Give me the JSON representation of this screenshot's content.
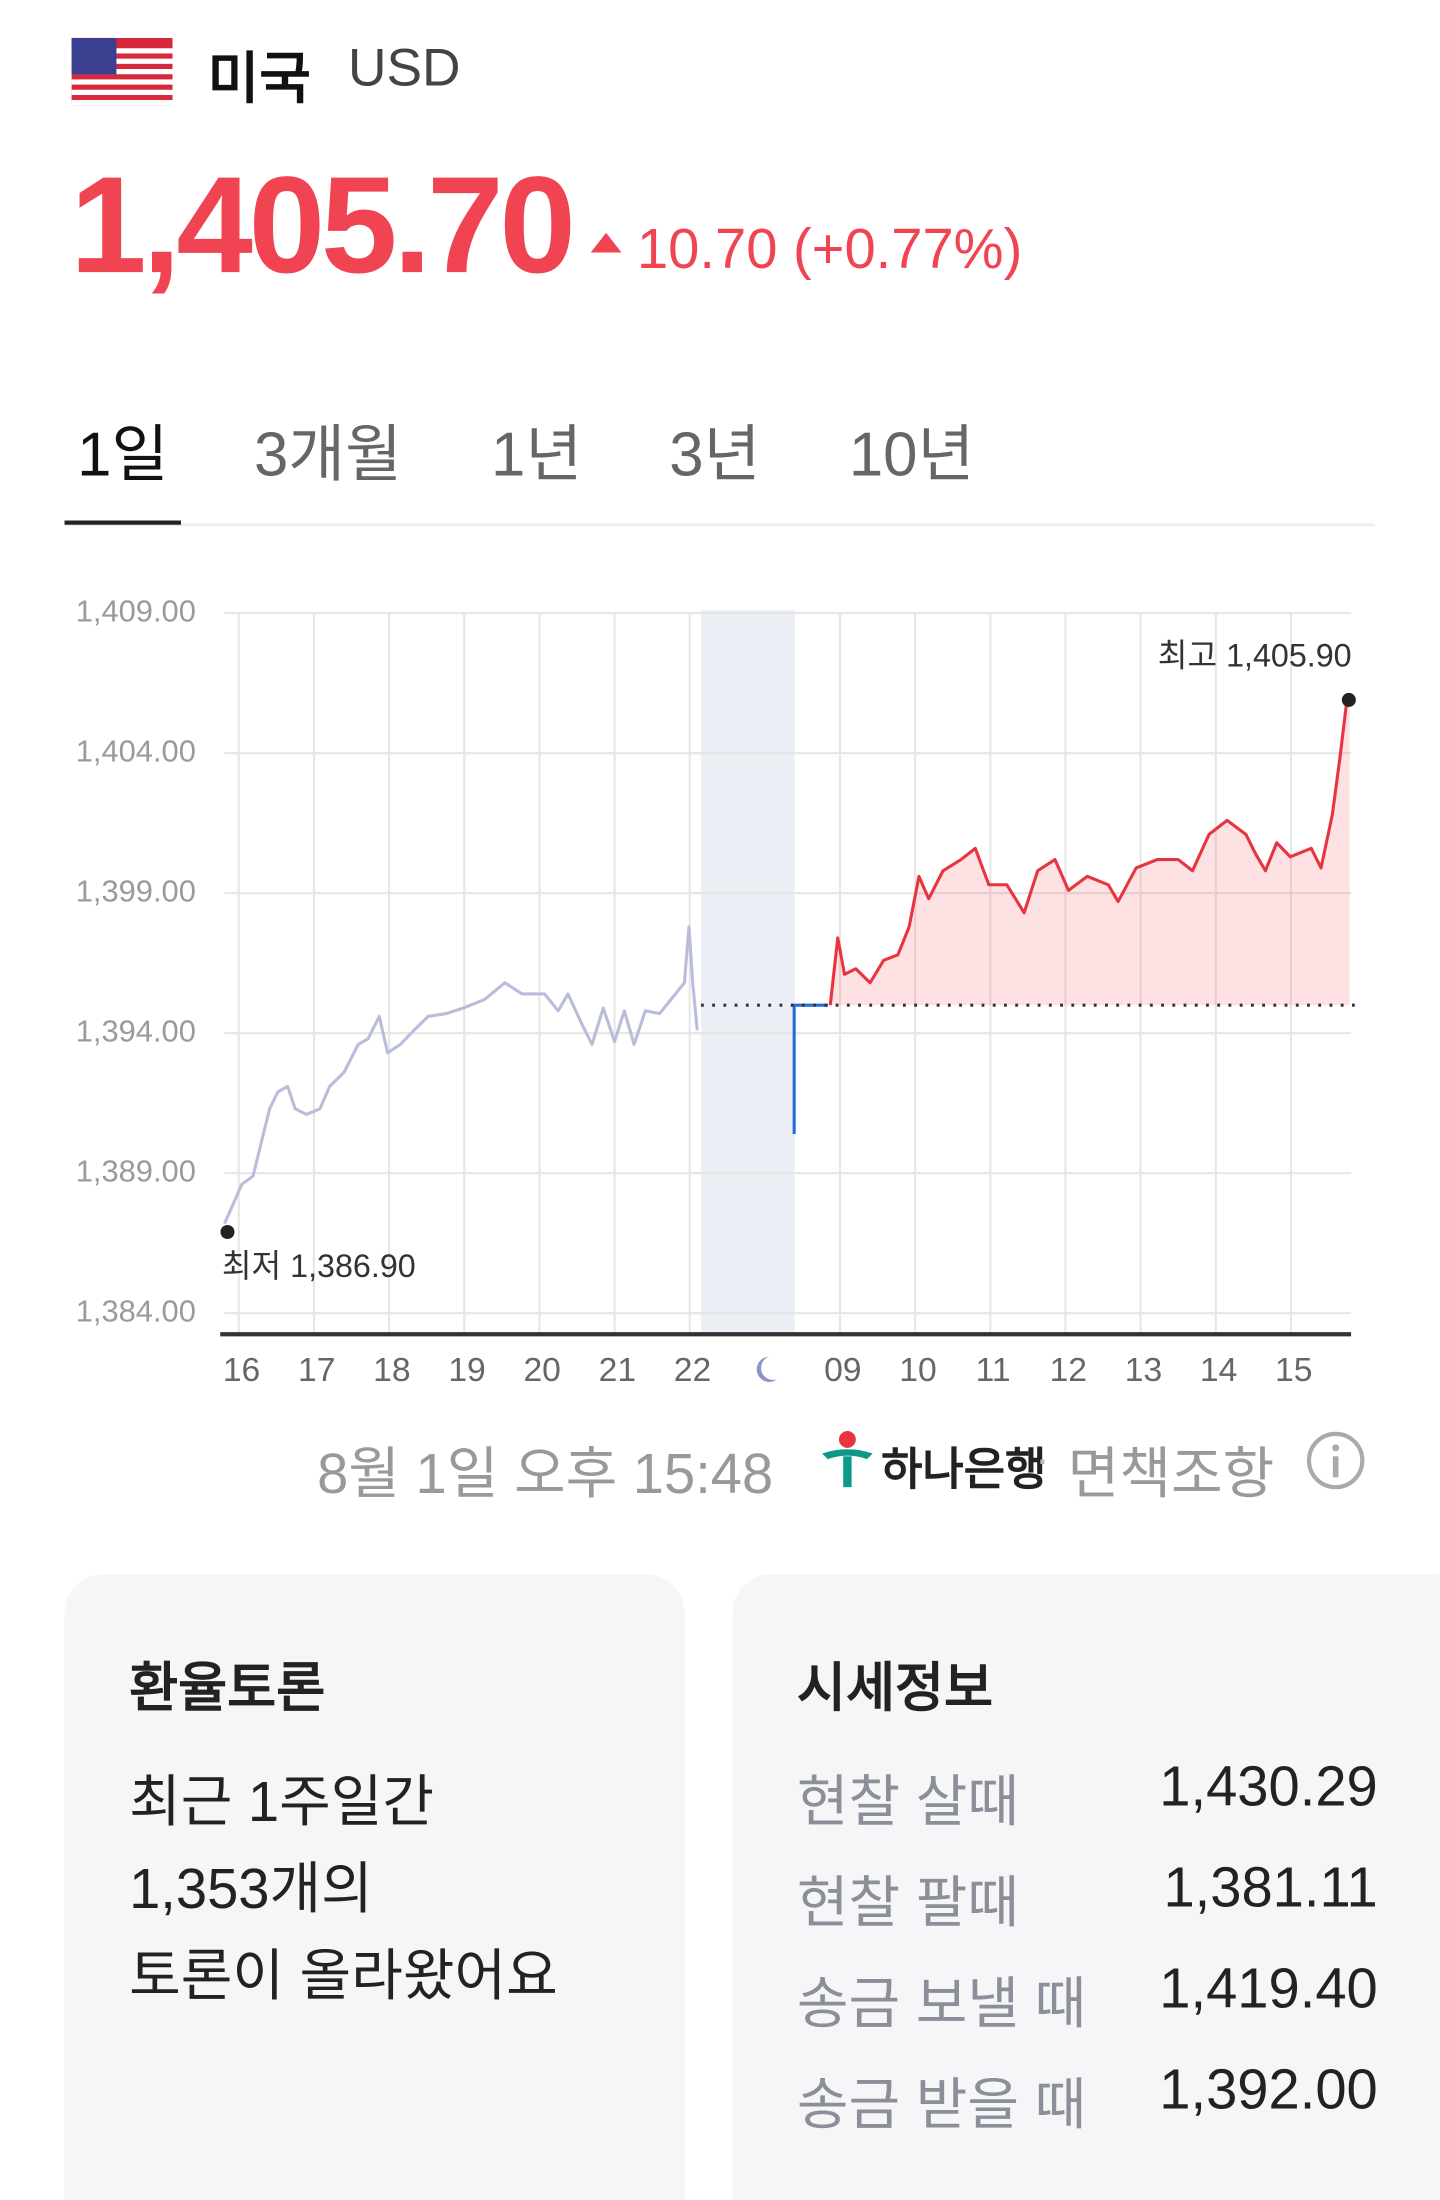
{
  "header": {
    "country": "미국",
    "currency": "USD",
    "price": "1,405.70",
    "change": "10.70 (+0.77%)"
  },
  "tabs": {
    "items": [
      "1일",
      "3개월",
      "1년",
      "3년",
      "10년"
    ],
    "active": 0
  },
  "chart_data": {
    "type": "line",
    "ylim": [
      1383.5,
      1409
    ],
    "yticks": [
      {
        "value": 1409,
        "label": "1,409.00"
      },
      {
        "value": 1404,
        "label": "1,404.00"
      },
      {
        "value": 1399,
        "label": "1,399.00"
      },
      {
        "value": 1394,
        "label": "1,394.00"
      },
      {
        "value": 1389,
        "label": "1,389.00"
      },
      {
        "value": 1384,
        "label": "1,384.00"
      }
    ],
    "xlim": [
      -0.19,
      14.8
    ],
    "xticks": [
      {
        "value": 0,
        "label": "16"
      },
      {
        "value": 1,
        "label": "17"
      },
      {
        "value": 2,
        "label": "18"
      },
      {
        "value": 3,
        "label": "19"
      },
      {
        "value": 4,
        "label": "20"
      },
      {
        "value": 5,
        "label": "21"
      },
      {
        "value": 6,
        "label": "22"
      },
      {
        "value": 8,
        "label": "09"
      },
      {
        "value": 9,
        "label": "10"
      },
      {
        "value": 10,
        "label": "11"
      },
      {
        "value": 11,
        "label": "12"
      },
      {
        "value": 12,
        "label": "13"
      },
      {
        "value": 13,
        "label": "14"
      },
      {
        "value": 14,
        "label": "15"
      }
    ],
    "grid": true,
    "shaded_range": [
      6.15,
      7.4
    ],
    "reference_line": 1395,
    "series": [
      {
        "color": "#b9bdda",
        "x": [
          -0.19,
          -0.09,
          0.04,
          0.19,
          0.3,
          0.41,
          0.52,
          0.65,
          0.75,
          0.9,
          1.08,
          1.21,
          1.4,
          1.59,
          1.72,
          1.87,
          1.98,
          2.15,
          2.33,
          2.52,
          2.76,
          2.99,
          3.27,
          3.54,
          3.77,
          4.07,
          4.25,
          4.38,
          4.57,
          4.7,
          4.85,
          5,
          5.13,
          5.26,
          5.41,
          5.6,
          5.78,
          5.93,
          5.99,
          6.04,
          6.1
        ],
        "values": [
          1387.2,
          1387.8,
          1388.6,
          1388.9,
          1390.1,
          1391.3,
          1391.9,
          1392.1,
          1391.3,
          1391.1,
          1391.3,
          1392.1,
          1392.6,
          1393.6,
          1393.8,
          1394.6,
          1393.3,
          1393.6,
          1394.1,
          1394.6,
          1394.7,
          1394.9,
          1395.2,
          1395.8,
          1395.4,
          1395.4,
          1394.8,
          1395.4,
          1394.3,
          1393.6,
          1394.9,
          1393.7,
          1394.8,
          1393.6,
          1394.8,
          1394.7,
          1395.3,
          1395.8,
          1397.8,
          1395.8,
          1394.1
        ]
      },
      {
        "color": "#1e6fd9",
        "x": [
          7.39,
          7.39,
          7.84
        ],
        "values": [
          1390.4,
          1395,
          1395
        ]
      },
      {
        "color": "#e8343f",
        "fill": true,
        "x": [
          7.87,
          7.97,
          8.06,
          8.21,
          8.4,
          8.58,
          8.77,
          8.92,
          9.05,
          9.18,
          9.37,
          9.61,
          9.8,
          9.98,
          10.22,
          10.45,
          10.63,
          10.86,
          11.04,
          11.29,
          11.57,
          11.7,
          11.94,
          12.22,
          12.5,
          12.69,
          12.91,
          13.15,
          13.4,
          13.53,
          13.66,
          13.81,
          13.99,
          14.27,
          14.4,
          14.55,
          14.65,
          14.74,
          14.78
        ],
        "values": [
          1395,
          1397.4,
          1396.1,
          1396.3,
          1395.8,
          1396.6,
          1396.8,
          1397.8,
          1399.6,
          1398.8,
          1399.8,
          1400.2,
          1400.6,
          1399.3,
          1399.3,
          1398.3,
          1399.8,
          1400.2,
          1399.1,
          1399.6,
          1399.3,
          1398.7,
          1399.9,
          1400.2,
          1400.2,
          1399.8,
          1401.1,
          1401.6,
          1401.1,
          1400.4,
          1399.8,
          1400.8,
          1400.3,
          1400.6,
          1399.9,
          1401.8,
          1403.8,
          1405.8,
          1405.9
        ]
      }
    ],
    "annotations": [
      {
        "x": -0.15,
        "y": 1386.9,
        "label": "최저 1,386.90",
        "anchor": "start",
        "side": "below"
      },
      {
        "x": 14.77,
        "y": 1405.9,
        "label": "최고 1,405.90",
        "anchor": "end",
        "side": "above"
      }
    ]
  },
  "footer": {
    "time": "8월 1일 오후 15:48",
    "bank": "하나은행",
    "disclaimer": "면책조항"
  },
  "forum": {
    "title": "환율토론",
    "lines": [
      "최근 1주일간",
      "1,353개의",
      "토론이 올라왔어요"
    ]
  },
  "rates": {
    "title": "시세정보",
    "rows": [
      [
        "현찰 살때",
        "1,430.29"
      ],
      [
        "현찰 팔때",
        "1,381.11"
      ],
      [
        "송금 보낼 때",
        "1,419.40"
      ],
      [
        "송금 받을 때",
        "1,392.00"
      ]
    ]
  }
}
